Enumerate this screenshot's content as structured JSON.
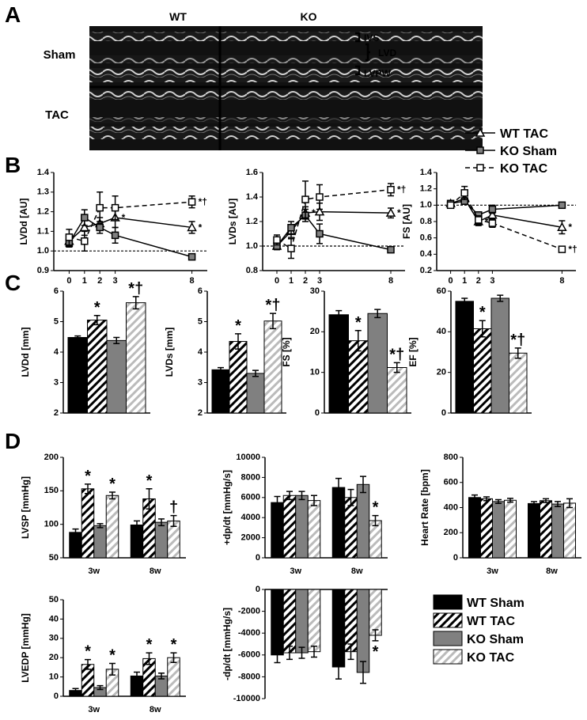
{
  "panels": {
    "a": "A",
    "b": "B",
    "c": "C",
    "d": "D"
  },
  "panel_a": {
    "columns": [
      "WT",
      "KO"
    ],
    "rows": [
      "Sham",
      "TAC"
    ],
    "labels": [
      "IVS",
      "LVD",
      "LVPW"
    ]
  },
  "legends": {
    "lines": [
      {
        "name": "WT TAC",
        "color": "#000000",
        "fill": "#ffffff",
        "marker": "triangle",
        "dashed": false
      },
      {
        "name": "KO Sham",
        "color": "#000000",
        "fill": "#808080",
        "marker": "square",
        "dashed": false
      },
      {
        "name": "KO TAC",
        "color": "#000000",
        "fill": "#ffffff",
        "marker": "square",
        "dashed": true
      }
    ],
    "bars": [
      {
        "name": "WT Sham",
        "color": "#000000",
        "hatch": false
      },
      {
        "name": "WT TAC",
        "color": "#000000",
        "hatch": true
      },
      {
        "name": "KO Sham",
        "color": "#808080",
        "hatch": false
      },
      {
        "name": "KO TAC",
        "color": "#bbbbbb",
        "hatch": true
      }
    ]
  },
  "chart_data": [
    {
      "type": "line",
      "ylabel": "LVDd [AU]",
      "x": [
        0,
        1,
        2,
        3,
        8
      ],
      "xlim": [
        -1,
        9
      ],
      "xticks": [
        0,
        1,
        2,
        3,
        8
      ],
      "ylim": [
        0.9,
        1.4
      ],
      "yticks": [
        0.9,
        {
          "value": 1,
          "label": "1.0"
        },
        1.1,
        1.2,
        1.3,
        1.4
      ],
      "reference_line": 1,
      "series": [
        {
          "values": [
            1.05,
            1.12,
            1.14,
            1.17,
            1.12
          ],
          "errors": [
            0.03,
            0.04,
            0.03,
            0.05,
            0.03
          ],
          "point_labels": [
            null,
            null,
            null,
            "*",
            "*"
          ]
        },
        {
          "values": [
            1.04,
            1.17,
            1.12,
            1.08,
            0.97
          ],
          "errors": [
            0.02,
            0.04,
            0.03,
            0.04,
            0.01
          ],
          "point_labels": [
            null,
            null,
            null,
            null,
            null
          ]
        },
        {
          "values": [
            1.07,
            1.05,
            1.22,
            1.22,
            1.25
          ],
          "errors": [
            0.04,
            0.05,
            0.08,
            0.06,
            0.03
          ],
          "point_labels": [
            null,
            null,
            null,
            null,
            "*†"
          ]
        }
      ]
    },
    {
      "type": "line",
      "ylabel": "LVDs [AU]",
      "x": [
        0,
        1,
        2,
        3,
        8
      ],
      "xlim": [
        -1,
        9
      ],
      "xticks": [
        0,
        1,
        2,
        3,
        8
      ],
      "ylim": [
        0.8,
        1.6
      ],
      "yticks": [
        0.8,
        {
          "value": 1,
          "label": "1.0"
        },
        1.2,
        1.4,
        1.6
      ],
      "reference_line": 1,
      "series": [
        {
          "values": [
            1.0,
            1.12,
            1.27,
            1.28,
            1.27
          ],
          "errors": [
            0.03,
            0.05,
            0.05,
            0.07,
            0.04
          ],
          "point_labels": [
            null,
            null,
            "*",
            null,
            "*"
          ]
        },
        {
          "values": [
            1.0,
            1.15,
            1.25,
            1.1,
            0.97
          ],
          "errors": [
            0.02,
            0.05,
            0.05,
            0.08,
            0.01
          ],
          "point_labels": [
            null,
            null,
            null,
            null,
            null
          ]
        },
        {
          "values": [
            1.05,
            0.98,
            1.38,
            1.4,
            1.46
          ],
          "errors": [
            0.04,
            0.08,
            0.15,
            0.1,
            0.05
          ],
          "point_labels": [
            null,
            null,
            null,
            null,
            "*†"
          ]
        }
      ]
    },
    {
      "type": "line",
      "ylabel": "FS [AU]",
      "x": [
        0,
        1,
        2,
        3,
        8
      ],
      "xlim": [
        -1,
        9
      ],
      "xticks": [
        0,
        1,
        2,
        3,
        8
      ],
      "ylim": [
        0.2,
        1.4
      ],
      "yticks": [
        0.2,
        0.4,
        0.6,
        0.8,
        {
          "value": 1,
          "label": "1.0"
        },
        1.2,
        1.4
      ],
      "reference_line": 1,
      "series": [
        {
          "values": [
            1.02,
            1.08,
            0.8,
            0.88,
            0.73
          ],
          "errors": [
            0.03,
            0.05,
            0.05,
            0.05,
            0.08
          ],
          "point_labels": [
            null,
            null,
            "*",
            null,
            "*"
          ]
        },
        {
          "values": [
            1.02,
            1.05,
            0.88,
            0.95,
            1.0
          ],
          "errors": [
            0.03,
            0.04,
            0.03,
            0.05,
            0.02
          ],
          "point_labels": [
            null,
            null,
            null,
            null,
            null
          ]
        },
        {
          "values": [
            1.0,
            1.15,
            0.82,
            0.78,
            0.46
          ],
          "errors": [
            0.03,
            0.08,
            0.05,
            0.05,
            0.03
          ],
          "point_labels": [
            null,
            null,
            null,
            null,
            "*†"
          ]
        }
      ]
    },
    {
      "type": "bar",
      "ylabel": "LVDd [mm]",
      "ylim": [
        2,
        6
      ],
      "yticks": [
        2,
        3,
        4,
        5,
        6
      ],
      "values": [
        4.48,
        5.05,
        4.38,
        5.62
      ],
      "errors": [
        0.05,
        0.15,
        0.1,
        0.2
      ],
      "marks": [
        null,
        "*",
        null,
        "*†"
      ]
    },
    {
      "type": "bar",
      "ylabel": "LVDs [mm]",
      "ylim": [
        2,
        6
      ],
      "yticks": [
        2,
        3,
        4,
        5,
        6
      ],
      "values": [
        3.42,
        4.35,
        3.3,
        5.02
      ],
      "errors": [
        0.07,
        0.25,
        0.1,
        0.25
      ],
      "marks": [
        null,
        "*",
        null,
        "*†"
      ]
    },
    {
      "type": "bar",
      "ylabel": "FS [%]",
      "ylim": [
        0,
        30
      ],
      "yticks": [
        0,
        10,
        20,
        30
      ],
      "values": [
        24.2,
        17.8,
        24.5,
        11.2
      ],
      "errors": [
        1,
        2.5,
        1,
        1.2
      ],
      "marks": [
        null,
        "*",
        null,
        "*†"
      ]
    },
    {
      "type": "bar",
      "ylabel": "EF [%]",
      "ylim": [
        0,
        60
      ],
      "yticks": [
        0,
        20,
        40,
        60
      ],
      "values": [
        55,
        41.5,
        56.5,
        29.5
      ],
      "errors": [
        1.5,
        4,
        1.5,
        2.5
      ],
      "marks": [
        null,
        "*",
        null,
        "*†"
      ]
    },
    {
      "type": "grouped_bar",
      "ylabel": "LVSP [mmHg]",
      "categories": [
        "3w",
        "8w"
      ],
      "ylim": [
        50,
        200
      ],
      "yticks": [
        50,
        100,
        150,
        200
      ],
      "series": [
        {
          "values": [
            88,
            99
          ],
          "errors": [
            5,
            6
          ],
          "marks": [
            null,
            null
          ]
        },
        {
          "values": [
            153,
            138
          ],
          "errors": [
            7,
            15
          ],
          "marks": [
            "*",
            "*"
          ]
        },
        {
          "values": [
            98,
            103
          ],
          "errors": [
            3,
            5
          ],
          "marks": [
            null,
            null
          ]
        },
        {
          "values": [
            143,
            105
          ],
          "errors": [
            5,
            8
          ],
          "marks": [
            "*",
            "†"
          ]
        }
      ]
    },
    {
      "type": "grouped_bar",
      "ylabel": "+dp/dt [mmHg/s]",
      "categories": [
        "3w",
        "8w"
      ],
      "ylim": [
        0,
        10000
      ],
      "yticks": [
        0,
        2000,
        4000,
        6000,
        8000,
        10000
      ],
      "series": [
        {
          "values": [
            5500,
            7000
          ],
          "errors": [
            600,
            900
          ],
          "marks": [
            null,
            null
          ]
        },
        {
          "values": [
            6200,
            6000
          ],
          "errors": [
            400,
            800
          ],
          "marks": [
            null,
            null
          ]
        },
        {
          "values": [
            6200,
            7300
          ],
          "errors": [
            400,
            800
          ],
          "marks": [
            null,
            null
          ]
        },
        {
          "values": [
            5700,
            3700
          ],
          "errors": [
            500,
            500
          ],
          "marks": [
            null,
            "*"
          ]
        }
      ]
    },
    {
      "type": "grouped_bar",
      "ylabel": "Heart Rate [bpm]",
      "categories": [
        "3w",
        "8w"
      ],
      "ylim": [
        0,
        800
      ],
      "yticks": [
        0,
        200,
        400,
        600,
        800
      ],
      "series": [
        {
          "values": [
            480,
            432
          ],
          "errors": [
            20,
            15
          ],
          "marks": [
            null,
            null
          ]
        },
        {
          "values": [
            470,
            455
          ],
          "errors": [
            15,
            15
          ],
          "marks": [
            null,
            null
          ]
        },
        {
          "values": [
            448,
            428
          ],
          "errors": [
            15,
            20
          ],
          "marks": [
            null,
            null
          ]
        },
        {
          "values": [
            458,
            435
          ],
          "errors": [
            15,
            35
          ],
          "marks": [
            null,
            null
          ]
        }
      ]
    },
    {
      "type": "grouped_bar",
      "ylabel": "LVEDP [mmHg]",
      "categories": [
        "3w",
        "8w"
      ],
      "ylim": [
        0,
        50
      ],
      "yticks": [
        0,
        10,
        20,
        30,
        40,
        50
      ],
      "series": [
        {
          "values": [
            3,
            10.5
          ],
          "errors": [
            1,
            2
          ],
          "marks": [
            null,
            null
          ]
        },
        {
          "values": [
            16.5,
            19.5
          ],
          "errors": [
            2.5,
            3
          ],
          "marks": [
            "*",
            "*"
          ]
        },
        {
          "values": [
            4.5,
            10.5
          ],
          "errors": [
            1,
            1.5
          ],
          "marks": [
            null,
            null
          ]
        },
        {
          "values": [
            14,
            20
          ],
          "errors": [
            3,
            2.5
          ],
          "marks": [
            "*",
            "*"
          ]
        }
      ]
    },
    {
      "type": "grouped_bar",
      "ylabel": "-dp/dt [mmHg/s]",
      "ylim": [
        -10000,
        0
      ],
      "yticks": [
        0,
        -2000,
        -4000,
        -6000,
        -8000,
        -10000
      ],
      "series": [
        {
          "values": [
            -6000,
            -7100
          ],
          "errors": [
            700,
            1100
          ],
          "marks": [
            null,
            null
          ]
        },
        {
          "values": [
            -5800,
            -5700
          ],
          "errors": [
            600,
            700
          ],
          "marks": [
            null,
            null
          ]
        },
        {
          "values": [
            -5800,
            -7600
          ],
          "errors": [
            500,
            1000
          ],
          "marks": [
            null,
            null
          ]
        },
        {
          "values": [
            -5700,
            -4200
          ],
          "errors": [
            500,
            500
          ],
          "marks": [
            null,
            "*"
          ]
        }
      ]
    }
  ]
}
